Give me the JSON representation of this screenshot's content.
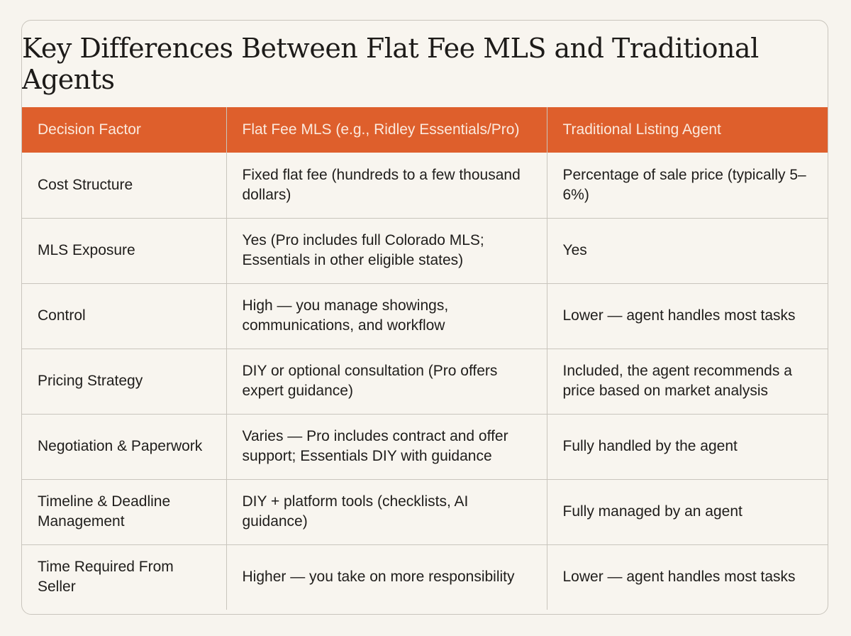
{
  "title": "Key Differences Between Flat Fee MLS and Traditional Agents",
  "colors": {
    "header_bg": "#de5f2c",
    "header_text": "#fbe9dd",
    "background": "#f7f4ee",
    "border": "#c9c5bd"
  },
  "table": {
    "headers": [
      "Decision Factor",
      "Flat Fee MLS (e.g., Ridley Essentials/Pro)",
      "Traditional Listing Agent"
    ],
    "rows": [
      [
        "Cost Structure",
        "Fixed flat fee (hundreds to a few thousand dollars)",
        "Percentage of sale price (typically 5–6%)"
      ],
      [
        "MLS Exposure",
        "Yes (Pro includes full Colorado MLS; Essentials in other eligible states)",
        "Yes"
      ],
      [
        "Control",
        "High — you manage showings, communications, and workflow",
        "Lower — agent handles most tasks"
      ],
      [
        "Pricing Strategy",
        "DIY or optional consultation (Pro offers expert guidance)",
        "Included, the agent recommends a price based on market analysis"
      ],
      [
        "Negotiation & Paperwork",
        "Varies — Pro includes contract and offer support; Essentials DIY with guidance",
        "Fully handled by the agent"
      ],
      [
        "Timeline & Deadline Management",
        "DIY + platform tools (checklists, AI guidance)",
        "Fully managed by an agent"
      ],
      [
        "Time Required From Seller",
        "Higher — you take on more responsibility",
        "Lower — agent handles most tasks"
      ]
    ]
  }
}
